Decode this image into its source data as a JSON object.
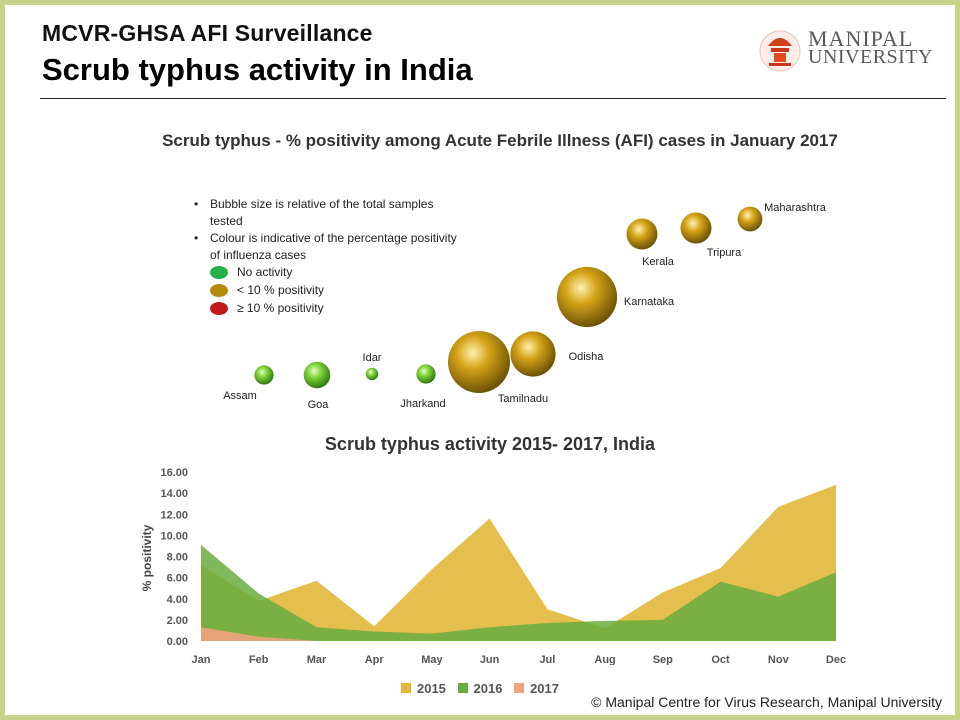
{
  "header": {
    "line1": "MCVR-GHSA AFI Surveillance",
    "line2": "Scrub typhus activity in India"
  },
  "logo": {
    "line1": "MANIPAL",
    "line2": "UNIVERSITY"
  },
  "colors": {
    "frame": "#c9d48a",
    "no_activity": "#5cbd2e",
    "lt10": "#c49a0e",
    "ge10": "#c11a1a",
    "s2015": "#e2b83a",
    "s2016": "#6aab3f",
    "s2017": "#f2a27e"
  },
  "chart_data": [
    {
      "type": "bubble",
      "title": "Scrub typhus - % positivity among  Acute Febrile Illness (AFI) cases in January 2017",
      "notes": [
        "Bubble size is relative of the total samples tested",
        "Colour is indicative of the percentage positivity of influenza cases"
      ],
      "legend": [
        {
          "label": "No activity",
          "color": "#5cbd2e"
        },
        {
          "label": "< 10 % positivity",
          "color": "#c49a0e"
        },
        {
          "label": "≥ 10 % positivity",
          "color": "#c11a1a"
        }
      ],
      "points": [
        {
          "state": "Assam",
          "category": "No activity",
          "relative_size": 0.31
        },
        {
          "state": "Goa",
          "category": "No activity",
          "relative_size": 0.43
        },
        {
          "state": "Idar",
          "category": "No activity",
          "relative_size": 0.2
        },
        {
          "state": "Jharkand",
          "category": "No activity",
          "relative_size": 0.31
        },
        {
          "state": "Tamilnadu",
          "category": "< 10 % positivity",
          "relative_size": 1.0
        },
        {
          "state": "Odisha",
          "category": "< 10 % positivity",
          "relative_size": 0.73
        },
        {
          "state": "Karnataka",
          "category": "< 10 % positivity",
          "relative_size": 0.97
        },
        {
          "state": "Kerala",
          "category": "< 10 % positivity",
          "relative_size": 0.5
        },
        {
          "state": "Tripura",
          "category": "< 10 % positivity",
          "relative_size": 0.5
        },
        {
          "state": "Maharashtra",
          "category": "< 10 % positivity",
          "relative_size": 0.4
        }
      ]
    },
    {
      "type": "area",
      "title": "Scrub typhus activity 2015- 2017, India",
      "ylabel": "% positivity",
      "ylim": [
        0,
        16
      ],
      "yticks": [
        "16.00",
        "14.00",
        "12.00",
        "10.00",
        "8.00",
        "6.00",
        "4.00",
        "2.00",
        "0.00"
      ],
      "categories": [
        "Jan",
        "Feb",
        "Mar",
        "Apr",
        "May",
        "Jun",
        "Jul",
        "Aug",
        "Sep",
        "Oct",
        "Nov",
        "Dec"
      ],
      "series": [
        {
          "name": "2015",
          "color": "#e2b83a",
          "values": [
            7.2,
            3.8,
            5.7,
            1.4,
            6.8,
            11.6,
            3.0,
            1.2,
            4.6,
            6.9,
            12.7,
            14.8
          ]
        },
        {
          "name": "2016",
          "color": "#6aab3f",
          "values": [
            9.1,
            4.5,
            1.3,
            0.9,
            0.7,
            1.3,
            1.7,
            1.9,
            2.0,
            5.6,
            4.2,
            6.5
          ]
        },
        {
          "name": "2017",
          "color": "#f2a27e",
          "values": [
            1.3,
            0.4,
            0.0,
            null,
            null,
            null,
            null,
            null,
            null,
            null,
            null,
            null
          ]
        }
      ]
    }
  ],
  "copyright": "© Manipal Centre for Virus Research, Manipal University"
}
